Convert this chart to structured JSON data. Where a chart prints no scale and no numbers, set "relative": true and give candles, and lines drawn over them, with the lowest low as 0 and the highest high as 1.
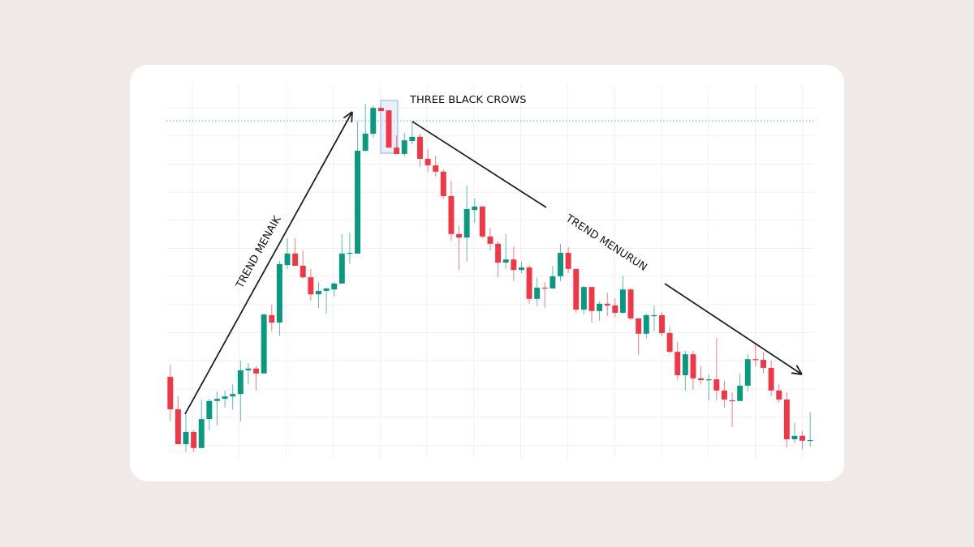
{
  "chart_data": {
    "type": "candlestick",
    "relative": true,
    "grid": true,
    "annotations": [
      "TREND MENAIK",
      "THREE BLACK CROWS",
      "TREND MENURUN"
    ],
    "ref_lines": [
      {
        "axis": "y",
        "value": 0.951,
        "color": "#5fb8a8",
        "line_style": "dotted"
      }
    ],
    "categories": [
      null,
      null,
      null,
      null,
      null,
      null,
      null,
      null,
      null,
      null,
      null,
      null,
      null,
      null,
      null,
      null,
      null,
      null,
      null,
      null,
      null,
      null,
      null,
      null,
      null,
      null,
      null,
      null,
      null,
      null,
      null,
      null,
      null,
      null,
      null,
      null,
      null,
      null,
      null,
      null,
      null,
      null,
      null,
      null,
      null,
      null,
      null,
      null,
      null,
      null,
      null,
      null,
      null,
      null,
      null,
      null,
      null,
      null,
      null,
      null,
      null,
      null,
      null,
      null,
      null,
      null,
      null,
      null,
      null,
      null,
      null,
      null,
      null,
      null,
      null,
      null,
      null,
      null,
      null,
      null,
      null,
      null,
      null
    ],
    "ohlc": [
      [
        0.216,
        0.251,
        0.088,
        0.123
      ],
      [
        0.123,
        0.16,
        0.023,
        0.023
      ],
      [
        0.023,
        0.107,
        0,
        0.058
      ],
      [
        0.058,
        0.063,
        0,
        0.012
      ],
      [
        0.012,
        0.151,
        0.012,
        0.095
      ],
      [
        0.095,
        0.153,
        0.063,
        0.147
      ],
      [
        0.147,
        0.174,
        0.077,
        0.153
      ],
      [
        0.153,
        0.177,
        0.128,
        0.16
      ],
      [
        0.16,
        0.195,
        0.123,
        0.167
      ],
      [
        0.167,
        0.263,
        0.088,
        0.235
      ],
      [
        0.235,
        0.256,
        0.195,
        0.24
      ],
      [
        0.24,
        0.247,
        0.177,
        0.226
      ],
      [
        0.226,
        0.398,
        0.226,
        0.395
      ],
      [
        0.393,
        0.423,
        0.347,
        0.372
      ],
      [
        0.372,
        0.549,
        0.333,
        0.54
      ],
      [
        0.537,
        0.614,
        0.526,
        0.57
      ],
      [
        0.57,
        0.614,
        0.535,
        0.535
      ],
      [
        0.535,
        0.579,
        0.498,
        0.502
      ],
      [
        0.502,
        0.526,
        0.435,
        0.453
      ],
      [
        0.453,
        0.488,
        0.414,
        0.463
      ],
      [
        0.463,
        0.47,
        0.398,
        0.47
      ],
      [
        0.467,
        0.488,
        0.447,
        0.484
      ],
      [
        0.484,
        0.626,
        0.484,
        0.57
      ],
      [
        0.57,
        0.63,
        0.54,
        0.572
      ],
      [
        0.57,
        0.949,
        0.57,
        0.865
      ],
      [
        0.865,
        1,
        0.863,
        0.914
      ],
      [
        0.914,
        0.995,
        0.902,
        0.988
      ],
      [
        0.988,
        0.988,
        0.979,
        0.979
      ],
      [
        0.981,
        0.981,
        0.874,
        0.874
      ],
      [
        0.874,
        0.909,
        0.856,
        0.856
      ],
      [
        0.856,
        0.916,
        0.849,
        0.895
      ],
      [
        0.893,
        0.949,
        0.884,
        0.905
      ],
      [
        0.905,
        0.914,
        0.819,
        0.842
      ],
      [
        0.842,
        0.87,
        0.805,
        0.823
      ],
      [
        0.823,
        0.851,
        0.791,
        0.805
      ],
      [
        0.805,
        0.812,
        0.728,
        0.735
      ],
      [
        0.735,
        0.779,
        0.607,
        0.626
      ],
      [
        0.626,
        0.649,
        0.523,
        0.616
      ],
      [
        0.616,
        0.765,
        0.547,
        0.698
      ],
      [
        0.695,
        0.728,
        0.658,
        0.705
      ],
      [
        0.705,
        0.705,
        0.614,
        0.619
      ],
      [
        0.619,
        0.644,
        0.579,
        0.598
      ],
      [
        0.598,
        0.605,
        0.502,
        0.544
      ],
      [
        0.544,
        0.626,
        0.526,
        0.553
      ],
      [
        0.553,
        0.591,
        0.491,
        0.523
      ],
      [
        0.523,
        0.547,
        0.514,
        0.53
      ],
      [
        0.53,
        0.537,
        0.426,
        0.44
      ],
      [
        0.44,
        0.5,
        0.421,
        0.472
      ],
      [
        0.472,
        0.488,
        0.414,
        0.47
      ],
      [
        0.47,
        0.535,
        0.47,
        0.505
      ],
      [
        0.505,
        0.598,
        0.491,
        0.572
      ],
      [
        0.572,
        0.588,
        0.514,
        0.526
      ],
      [
        0.526,
        0.526,
        0.4,
        0.409
      ],
      [
        0.409,
        0.477,
        0.395,
        0.474
      ],
      [
        0.474,
        0.474,
        0.372,
        0.405
      ],
      [
        0.405,
        0.433,
        0.377,
        0.426
      ],
      [
        0.426,
        0.458,
        0.391,
        0.421
      ],
      [
        0.421,
        0.442,
        0.388,
        0.4
      ],
      [
        0.4,
        0.507,
        0.398,
        0.467
      ],
      [
        0.467,
        0.47,
        0.379,
        0.384
      ],
      [
        0.384,
        0.384,
        0.279,
        0.34
      ],
      [
        0.34,
        0.398,
        0.326,
        0.393
      ],
      [
        0.391,
        0.421,
        0.347,
        0.393
      ],
      [
        0.393,
        0.402,
        0.333,
        0.342
      ],
      [
        0.342,
        0.36,
        0.284,
        0.288
      ],
      [
        0.288,
        0.316,
        0.207,
        0.221
      ],
      [
        0.221,
        0.291,
        0.177,
        0.281
      ],
      [
        0.281,
        0.291,
        0.179,
        0.212
      ],
      [
        0.212,
        0.247,
        0.195,
        0.207
      ],
      [
        0.207,
        0.223,
        0.149,
        0.209
      ],
      [
        0.209,
        0.328,
        0.149,
        0.177
      ],
      [
        0.177,
        0.205,
        0.128,
        0.151
      ],
      [
        0.149,
        0.172,
        0.072,
        0.147
      ],
      [
        0.147,
        0.226,
        0.147,
        0.191
      ],
      [
        0.191,
        0.281,
        0.174,
        0.267
      ],
      [
        0.267,
        0.314,
        0.247,
        0.265
      ],
      [
        0.265,
        0.286,
        0.226,
        0.242
      ],
      [
        0.242,
        0.263,
        0.16,
        0.177
      ],
      [
        0.177,
        0.195,
        0.142,
        0.151
      ],
      [
        0.151,
        0.172,
        0.014,
        0.037
      ],
      [
        0.037,
        0.084,
        0.026,
        0.047
      ],
      [
        0.047,
        0.06,
        0.009,
        0.033
      ],
      [
        0.033,
        0.116,
        0.016,
        0.035
      ]
    ],
    "colors": [
      "#f23645",
      "#f23645",
      "#089981",
      "#f23645",
      "#089981",
      "#089981",
      "#089981",
      "#089981",
      "#089981",
      "#089981",
      "#089981",
      "#f23645",
      "#089981",
      "#f23645",
      "#089981",
      "#089981",
      "#f23645",
      "#f23645",
      "#f23645",
      "#089981",
      "#089981",
      "#089981",
      "#089981",
      "#089981",
      "#089981",
      "#089981",
      "#089981",
      "#f23645",
      "#f23645",
      "#f23645",
      "#089981",
      "#089981",
      "#f23645",
      "#f23645",
      "#f23645",
      "#f23645",
      "#f23645",
      "#f23645",
      "#089981",
      "#089981",
      "#f23645",
      "#f23645",
      "#f23645",
      "#089981",
      "#f23645",
      "#089981",
      "#f23645",
      "#089981",
      "#f23645",
      "#089981",
      "#089981",
      "#f23645",
      "#f23645",
      "#089981",
      "#f23645",
      "#089981",
      "#f23645",
      "#f23645",
      "#089981",
      "#f23645",
      "#f23645",
      "#089981",
      "#089981",
      "#f23645",
      "#f23645",
      "#f23645",
      "#089981",
      "#f23645",
      "#f23645",
      "#089981",
      "#f23645",
      "#f23645",
      "#f23645",
      "#089981",
      "#089981",
      "#f23645",
      "#f23645",
      "#f23645",
      "#f23645",
      "#f23645",
      "#089981",
      "#f23645",
      "#089981"
    ]
  }
}
